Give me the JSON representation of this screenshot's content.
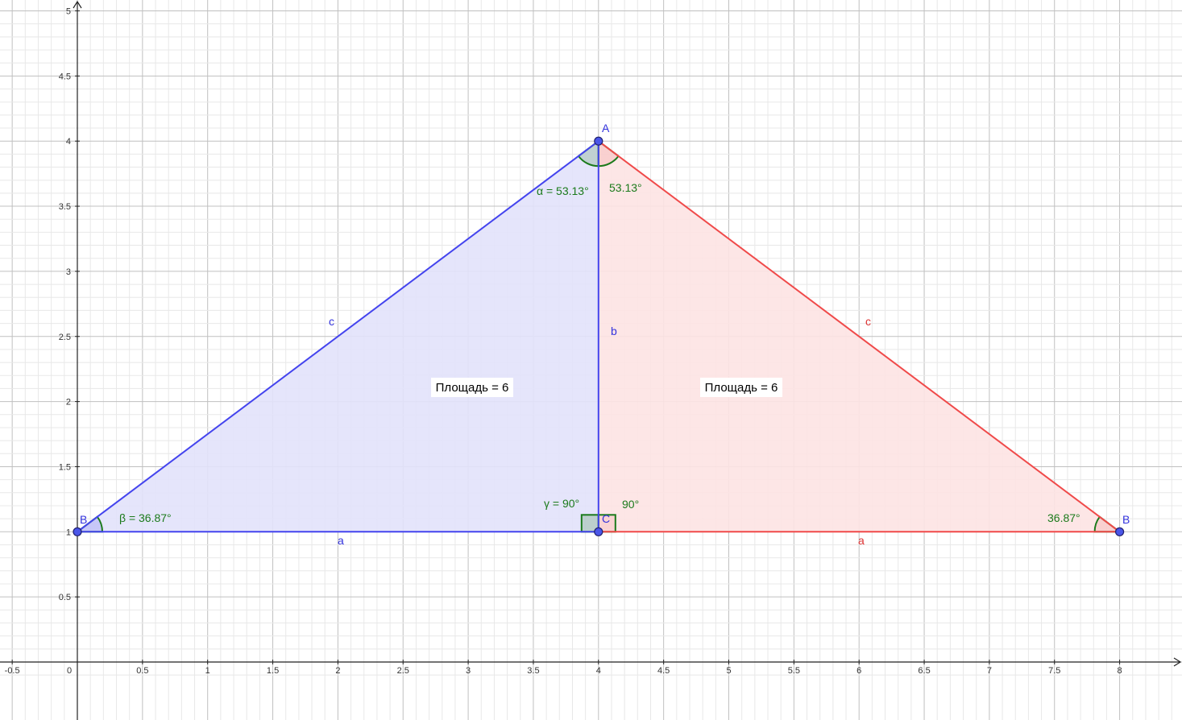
{
  "axes": {
    "x_ticks": [
      "-0.5",
      "0",
      "0.5",
      "1",
      "1.5",
      "2",
      "2.5",
      "3",
      "3.5",
      "4",
      "4.5",
      "5",
      "5.5",
      "6",
      "6.5",
      "7",
      "7.5",
      "8"
    ],
    "y_ticks": [
      "0.5",
      "1",
      "1.5",
      "2",
      "2.5",
      "3",
      "3.5",
      "4",
      "4.5",
      "5"
    ],
    "xlim": [
      -0.6,
      8.5
    ],
    "ylim": [
      0,
      5
    ]
  },
  "points": {
    "A": {
      "label": "A",
      "x": 4,
      "y": 4
    },
    "B_left": {
      "label": "B",
      "x": 0,
      "y": 1
    },
    "C": {
      "label": "C",
      "x": 4,
      "y": 1
    },
    "B_right": {
      "label": "B",
      "x": 8,
      "y": 1
    }
  },
  "triangle_left": {
    "fill": "#e2e2fb",
    "stroke": "#4444ee",
    "side_a": "a",
    "side_b": "b",
    "side_c": "c",
    "area_label": "Площадь = 6",
    "angle_alpha": "α = 53.13°",
    "angle_beta": "β = 36.87°",
    "angle_gamma": "γ = 90°"
  },
  "triangle_right": {
    "fill": "#fde3e3",
    "stroke": "#f04a4a",
    "side_a": "a",
    "side_c": "c",
    "area_label": "Площадь = 6",
    "angle_top": "53.13°",
    "angle_right": "36.87°",
    "angle_c": "90°"
  },
  "colors": {
    "grid_major": "#c0c0c0",
    "grid_minor": "#e8e8e8",
    "angle_arc": "#1b7a1b",
    "point_fill": "#4a56e8"
  }
}
